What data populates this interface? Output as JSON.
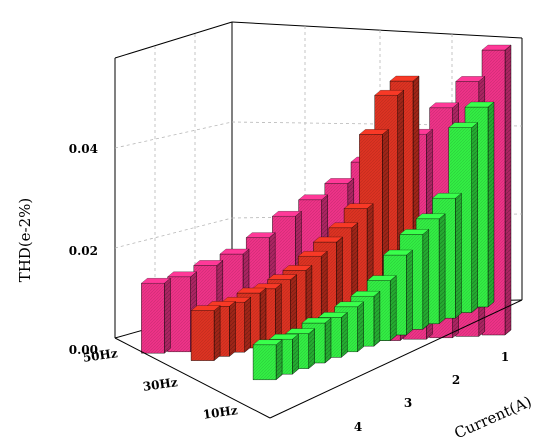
{
  "chart_data": {
    "type": "bar",
    "subtype": "3d-bar",
    "ylabel": "THD(e-2%)",
    "xlabel": "Current(A)",
    "zlabel": "",
    "ylim": [
      0,
      0.058
    ],
    "yticks": [
      "0.00",
      "0.02",
      "0.04"
    ],
    "frequency_labels": [
      "50Hz",
      "30Hz",
      "10Hz"
    ],
    "current_labels": [
      "1",
      "2",
      "3",
      "4"
    ],
    "grid": true,
    "series": [
      {
        "label": "50Hz",
        "color": "#ee3388",
        "values": [
          0.057,
          0.051,
          0.046,
          0.041,
          0.038,
          0.036,
          0.032,
          0.029,
          0.026,
          0.022,
          0.019,
          0.017,
          0.015,
          0.014
        ]
      },
      {
        "label": "30Hz",
        "color": "#dd3322",
        "values": [
          0.045,
          0.043,
          0.036,
          0.022,
          0.019,
          0.017,
          0.015,
          0.013,
          0.012,
          0.011,
          0.011,
          0.01,
          0.01,
          0.01
        ]
      },
      {
        "label": "10Hz",
        "color": "#33ee44",
        "values": [
          0.04,
          0.037,
          0.024,
          0.021,
          0.019,
          0.016,
          0.012,
          0.01,
          0.009,
          0.008,
          0.008,
          0.007,
          0.007,
          0.007
        ]
      }
    ]
  }
}
